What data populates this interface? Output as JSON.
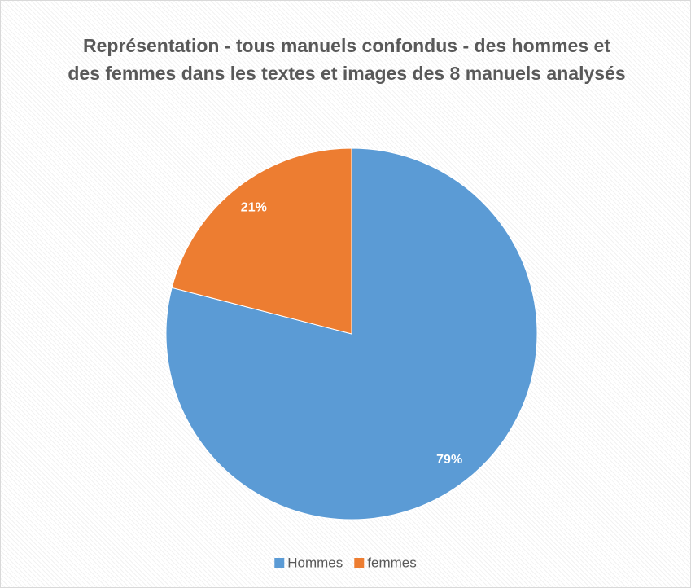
{
  "chart_data": {
    "type": "pie",
    "title": "Représentation - tous manuels confondus - des hommes et des femmes dans les textes et images des 8 manuels analysés",
    "categories": [
      "Hommes",
      "femmes"
    ],
    "values": [
      79,
      21
    ],
    "value_labels": [
      "79%",
      "21%"
    ],
    "colors": [
      "#5b9bd5",
      "#ed7d31"
    ],
    "legend": "bottom"
  }
}
